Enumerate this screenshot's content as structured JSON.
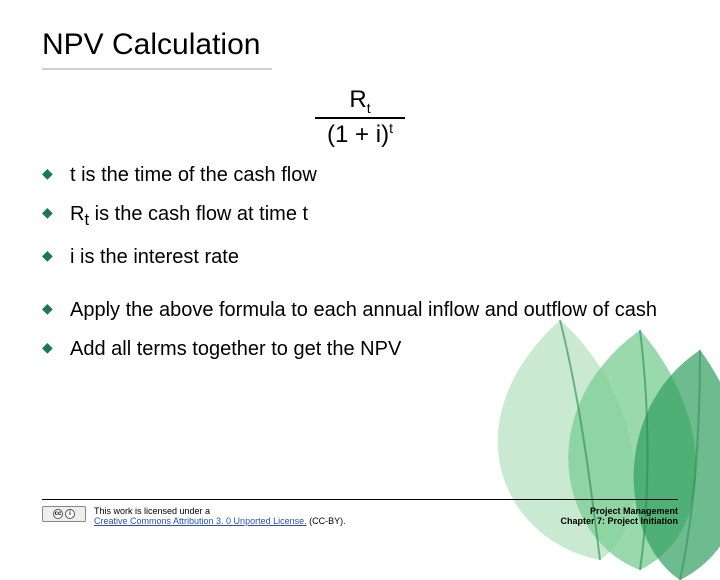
{
  "title": "NPV Calculation",
  "formula": {
    "numerator_base": "R",
    "numerator_sub": "t",
    "denominator_prefix": "(1 + i)",
    "denominator_sup": "t"
  },
  "bullets": [
    {
      "html": "t is the time of the cash flow"
    },
    {
      "html": "R<sub>t</sub> is the cash flow at time t"
    },
    {
      "html": "i is the interest rate"
    },
    {
      "gap": true
    },
    {
      "html": "Apply the above formula to each annual inflow and outflow of cash"
    },
    {
      "html": "Add all terms together to get the NPV"
    }
  ],
  "footer": {
    "license_line1": "This work is licensed under a",
    "license_link_text": "Creative Commons Attribution 3. 0 Unported License.",
    "license_suffix": " (CC-BY).",
    "right_line1": "Project Management",
    "right_line2": "Chapter 7: Project Initiation"
  },
  "colors": {
    "bullet_marker": "#1a7a4a",
    "leaf_light": "#bfe6c8",
    "leaf_mid": "#7fcf97",
    "leaf_dark": "#2f9e5e",
    "leaf_stroke": "#2a8a52",
    "title_underline": "#d0d0d0"
  }
}
